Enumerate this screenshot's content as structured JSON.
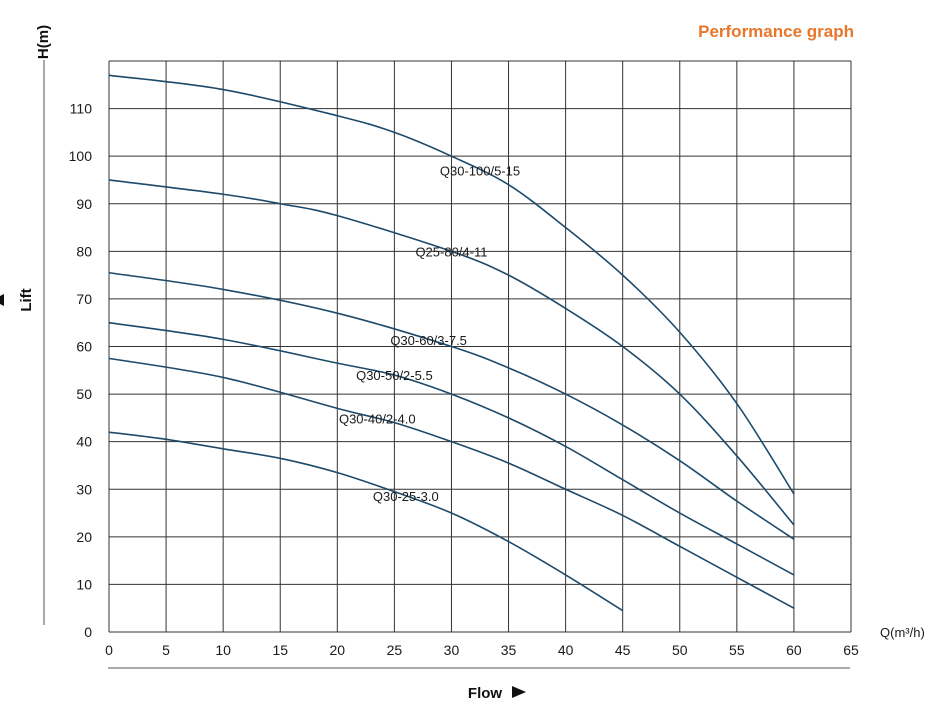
{
  "chart_data": {
    "type": "line",
    "title": "Performance graph",
    "xlabel": "Flow",
    "ylabel": "Lift",
    "x_unit": "Q(m³/h)",
    "y_unit": "H(m)",
    "xlim": [
      0,
      65
    ],
    "ylim": [
      0,
      120
    ],
    "x_ticks": [
      0,
      5,
      10,
      15,
      20,
      25,
      30,
      35,
      40,
      45,
      50,
      55,
      60,
      65
    ],
    "y_ticks": [
      0,
      10,
      20,
      30,
      40,
      50,
      60,
      70,
      80,
      90,
      100,
      110
    ],
    "grid": true,
    "series": [
      {
        "name": "Q30-100/5-15",
        "x": [
          0,
          10,
          20,
          25,
          30,
          35,
          40,
          45,
          50,
          55,
          60
        ],
        "y": [
          117,
          114,
          108.5,
          105,
          100,
          94,
          85,
          75,
          63,
          48,
          29
        ]
      },
      {
        "name": "Q25-80/4-11",
        "x": [
          0,
          10,
          15,
          20,
          30,
          35,
          40,
          45,
          50,
          55,
          60
        ],
        "y": [
          95,
          92,
          90,
          87.5,
          80,
          75,
          68,
          60,
          50,
          37,
          22.5
        ]
      },
      {
        "name": "Q30-60/3-7.5",
        "x": [
          0,
          10,
          20,
          30,
          35,
          40,
          45,
          50,
          55,
          60
        ],
        "y": [
          75.5,
          72,
          67,
          60,
          55.5,
          50,
          43.5,
          36,
          27.5,
          19.5
        ]
      },
      {
        "name": "Q30-50/2-5.5",
        "x": [
          0,
          10,
          20,
          25,
          30,
          35,
          40,
          45,
          50,
          55,
          60
        ],
        "y": [
          65,
          61.5,
          56.5,
          54,
          50,
          45,
          39,
          32,
          25,
          18.5,
          12
        ]
      },
      {
        "name": "Q30-40/2-4.0",
        "x": [
          0,
          10,
          20,
          25,
          30,
          35,
          40,
          45,
          50,
          55,
          60
        ],
        "y": [
          57.5,
          53.5,
          47,
          44,
          40,
          35.5,
          30,
          24.5,
          18,
          11.5,
          5
        ]
      },
      {
        "name": "Q30-25-3.0",
        "x": [
          0,
          5,
          10,
          15,
          20,
          25,
          30,
          35,
          40,
          45
        ],
        "y": [
          42,
          40.5,
          38.5,
          36.5,
          33.5,
          29.5,
          25,
          19,
          12,
          4.5
        ]
      }
    ],
    "colors": {
      "line": "#1d4a6b",
      "grid": "#333333",
      "title": "#e8762b",
      "text": "#1a1a1a"
    }
  }
}
